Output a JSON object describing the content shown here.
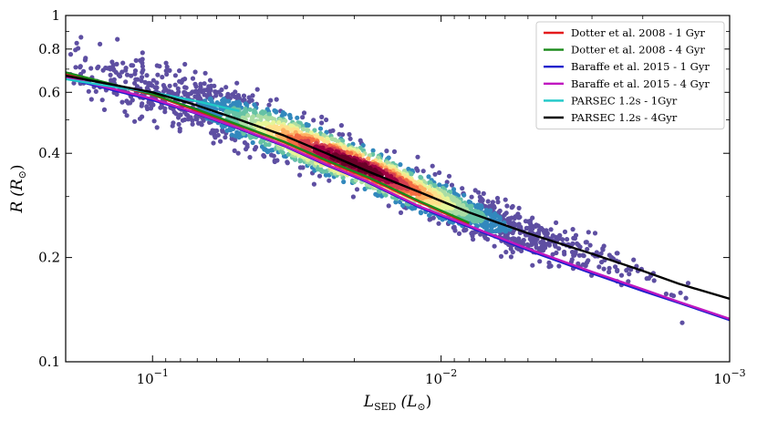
{
  "chart_data": {
    "type": "scatter",
    "title": "",
    "xlabel": "L_SED (L_⊙)",
    "ylabel": "R (R_⊙)",
    "xlabel_parts": {
      "main": "L",
      "sub": "SED",
      "paren_open": "(L",
      "sun": "⊙",
      "paren_close": ")"
    },
    "ylabel_parts": {
      "main": "R",
      "paren_open": "(R",
      "sun": "⊙",
      "paren_close": ")"
    },
    "x_scale": "log",
    "y_scale": "log",
    "x_inverted": true,
    "xlim": [
      0.2,
      0.001
    ],
    "ylim": [
      0.1,
      1.0
    ],
    "x_ticks": [
      {
        "value": 0.1,
        "base": "10",
        "exp": "−1"
      },
      {
        "value": 0.01,
        "base": "10",
        "exp": "−2"
      },
      {
        "value": 0.001,
        "base": "10",
        "exp": "−3"
      }
    ],
    "y_ticks": [
      {
        "value": 1.0,
        "label": "1"
      },
      {
        "value": 0.8,
        "label": "0.8"
      },
      {
        "value": 0.6,
        "label": "0.6"
      },
      {
        "value": 0.4,
        "label": "0.4"
      },
      {
        "value": 0.2,
        "label": "0.2"
      },
      {
        "value": 0.1,
        "label": "0.1"
      }
    ],
    "legend_position": "top-right",
    "series": [
      {
        "name": "Dotter et al. 2008 - 1 Gyr",
        "color": "#e41a1c",
        "x": [
          0.2,
          0.15,
          0.1,
          0.07,
          0.05,
          0.035,
          0.025,
          0.018,
          0.012,
          0.008
        ],
        "y": [
          0.68,
          0.64,
          0.59,
          0.53,
          0.48,
          0.43,
          0.38,
          0.34,
          0.29,
          0.25
        ]
      },
      {
        "name": "Dotter et al. 2008 - 4 Gyr",
        "color": "#1a8a1a",
        "x": [
          0.2,
          0.15,
          0.1,
          0.07,
          0.05,
          0.035,
          0.025,
          0.018,
          0.012,
          0.008
        ],
        "y": [
          0.685,
          0.645,
          0.592,
          0.535,
          0.482,
          0.432,
          0.382,
          0.342,
          0.292,
          0.252
        ]
      },
      {
        "name": "Baraffe et al. 2015 - 1 Gyr",
        "color": "#1f1fcc",
        "x": [
          0.2,
          0.15,
          0.1,
          0.07,
          0.05,
          0.035,
          0.025,
          0.018,
          0.012,
          0.008,
          0.005,
          0.003,
          0.002,
          0.0015,
          0.001
        ],
        "y": [
          0.66,
          0.62,
          0.57,
          0.52,
          0.47,
          0.42,
          0.37,
          0.33,
          0.28,
          0.245,
          0.21,
          0.18,
          0.16,
          0.148,
          0.132
        ]
      },
      {
        "name": "Baraffe et al. 2015 - 4 Gyr",
        "color": "#c017c0",
        "x": [
          0.2,
          0.15,
          0.1,
          0.07,
          0.05,
          0.035,
          0.025,
          0.018,
          0.012,
          0.008,
          0.005,
          0.003,
          0.002,
          0.0015,
          0.001
        ],
        "y": [
          0.665,
          0.625,
          0.575,
          0.522,
          0.472,
          0.422,
          0.372,
          0.332,
          0.282,
          0.247,
          0.212,
          0.182,
          0.162,
          0.149,
          0.133
        ]
      },
      {
        "name": "PARSEC 1.2s - 1Gyr",
        "color": "#1fc8c8",
        "x": [
          0.2,
          0.15,
          0.1,
          0.07,
          0.05
        ],
        "y": [
          0.655,
          0.63,
          0.6,
          0.565,
          0.53
        ]
      },
      {
        "name": "PARSEC 1.2s - 4Gyr",
        "color": "#000000",
        "x": [
          0.2,
          0.15,
          0.1,
          0.07,
          0.05,
          0.035,
          0.025,
          0.018,
          0.012,
          0.008,
          0.005,
          0.003,
          0.002,
          0.0015,
          0.001
        ],
        "y": [
          0.67,
          0.64,
          0.6,
          0.55,
          0.5,
          0.45,
          0.4,
          0.355,
          0.31,
          0.27,
          0.235,
          0.205,
          0.183,
          0.168,
          0.152
        ]
      }
    ],
    "scatter_cloud": {
      "description_color": "density-coloured points (spectral colormap: purple low density to dark red high density)",
      "center_line": {
        "x": [
          0.2,
          0.15,
          0.1,
          0.07,
          0.05,
          0.035,
          0.025,
          0.018,
          0.012,
          0.008,
          0.005,
          0.003,
          0.002,
          0.0015
        ],
        "y": [
          0.72,
          0.67,
          0.61,
          0.55,
          0.5,
          0.45,
          0.4,
          0.36,
          0.31,
          0.27,
          0.23,
          0.2,
          0.18,
          0.165
        ]
      },
      "density_peak_x": 0.02,
      "n_points": 2600,
      "colors": [
        "#5e4fa2",
        "#3288bd",
        "#66c2a5",
        "#abdda4",
        "#e6f598",
        "#fee08b",
        "#fdae61",
        "#f46d43",
        "#d53e4f",
        "#9e0142",
        "#6b0028"
      ]
    }
  }
}
